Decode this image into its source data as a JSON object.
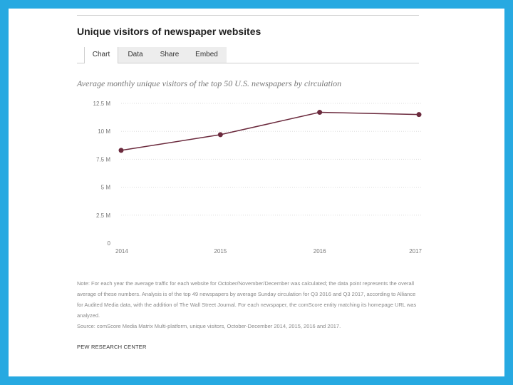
{
  "title": "Unique visitors of newspaper websites",
  "tabs": [
    {
      "label": "Chart",
      "active": true
    },
    {
      "label": "Data",
      "active": false
    },
    {
      "label": "Share",
      "active": false
    },
    {
      "label": "Embed",
      "active": false
    }
  ],
  "subtitle": "Average monthly unique visitors of the top 50 U.S. newspapers by circulation",
  "note": "Note: For each year the average traffic for each website for October/November/December was calculated; the data point represents the overall average of these numbers. Analysis is of the top 49 newspapers by average Sunday circulation for Q3 2016 and Q3 2017, according to Alliance for Audited Media data, with the addition of The Wall Street Journal. For each newspaper, the comScore entity matching its homepage URL was analyzed.",
  "source": "Source: comScore Media Matrix Multi-platform, unique visitors, October-December 2014, 2015, 2016 and 2017.",
  "credit": "PEW RESEARCH CENTER",
  "colors": {
    "background": "#27a9e1",
    "line": "#6b2a3d",
    "grid": "#dddddd"
  },
  "chart_data": {
    "type": "line",
    "title": "Average monthly unique visitors of the top 50 U.S. newspapers by circulation",
    "x": [
      "2014",
      "2015",
      "2016",
      "2017"
    ],
    "series": [
      {
        "values": [
          8.3,
          9.7,
          11.7,
          11.5
        ]
      }
    ],
    "y_ticks": [
      0,
      2.5,
      5,
      7.5,
      10,
      12.5
    ],
    "y_tick_labels": [
      "0",
      "2.5 M",
      "5 M",
      "7.5 M",
      "10 M",
      "12.5 M"
    ],
    "ylim": [
      0,
      12.5
    ],
    "grid": true,
    "xlabel": "",
    "ylabel": ""
  }
}
